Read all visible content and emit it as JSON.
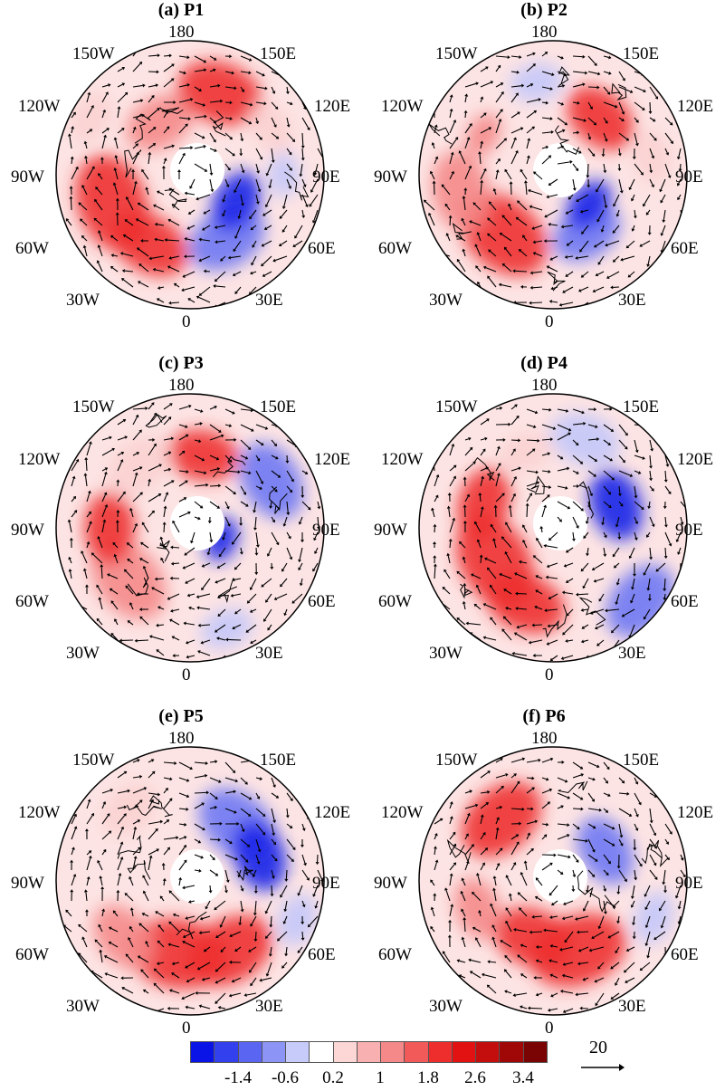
{
  "panels": [
    {
      "title": "(a) P1",
      "labels": {
        "top": "180",
        "bottom": "0",
        "l150": "150W",
        "l120": "120W",
        "l90": "90W",
        "l60": "60W",
        "l30": "30W",
        "r150": "150E",
        "r120": "120E",
        "r90": "90E",
        "r60": "60E",
        "r30": "30E"
      }
    },
    {
      "title": "(b) P2",
      "labels": {
        "top": "180",
        "bottom": "0",
        "l150": "150W",
        "l120": "120W",
        "l90": "90W",
        "l60": "60W",
        "l30": "30W",
        "r150": "150E",
        "r120": "120E",
        "r90": "90E",
        "r60": "60E",
        "r30": "30E"
      }
    },
    {
      "title": "(c) P3",
      "labels": {
        "top": "180",
        "bottom": "0",
        "l150": "150W",
        "l120": "120W",
        "l90": "90W",
        "l60": "60W",
        "l30": "30W",
        "r150": "150E",
        "r120": "120E",
        "r90": "90E",
        "r60": "60E",
        "r30": "30E"
      }
    },
    {
      "title": "(d) P4",
      "labels": {
        "top": "180",
        "bottom": "0",
        "l150": "150W",
        "l120": "120W",
        "l90": "90W",
        "l60": "60W",
        "l30": "30W",
        "r150": "150E",
        "r120": "120E",
        "r90": "90E",
        "r60": "60E",
        "r30": "30E"
      }
    },
    {
      "title": "(e) P5",
      "labels": {
        "top": "180",
        "bottom": "0",
        "l150": "150W",
        "l120": "120W",
        "l90": "90W",
        "l60": "60W",
        "l30": "30W",
        "r150": "150E",
        "r120": "120E",
        "r90": "90E",
        "r60": "60E",
        "r30": "30E"
      }
    },
    {
      "title": "(f) P6",
      "labels": {
        "top": "180",
        "bottom": "0",
        "l150": "150W",
        "l120": "120W",
        "l90": "90W",
        "l60": "60W",
        "l30": "30W",
        "r150": "150E",
        "r120": "120E",
        "r90": "90E",
        "r60": "60E",
        "r30": "30E"
      }
    }
  ],
  "colorbar": {
    "colors": [
      "#0a14e6",
      "#3340ee",
      "#5a66f2",
      "#8c94f5",
      "#c7cbfa",
      "#ffffff",
      "#fdd6d6",
      "#f9b0b0",
      "#f58888",
      "#f25a5a",
      "#ee2d2d",
      "#e31212",
      "#c40d0d",
      "#a00808",
      "#7a0404"
    ],
    "ticks": [
      "-1.4",
      "-0.6",
      "0.2",
      "1",
      "1.8",
      "2.6",
      "3.4"
    ]
  },
  "reference_vector": {
    "value": "20"
  }
}
